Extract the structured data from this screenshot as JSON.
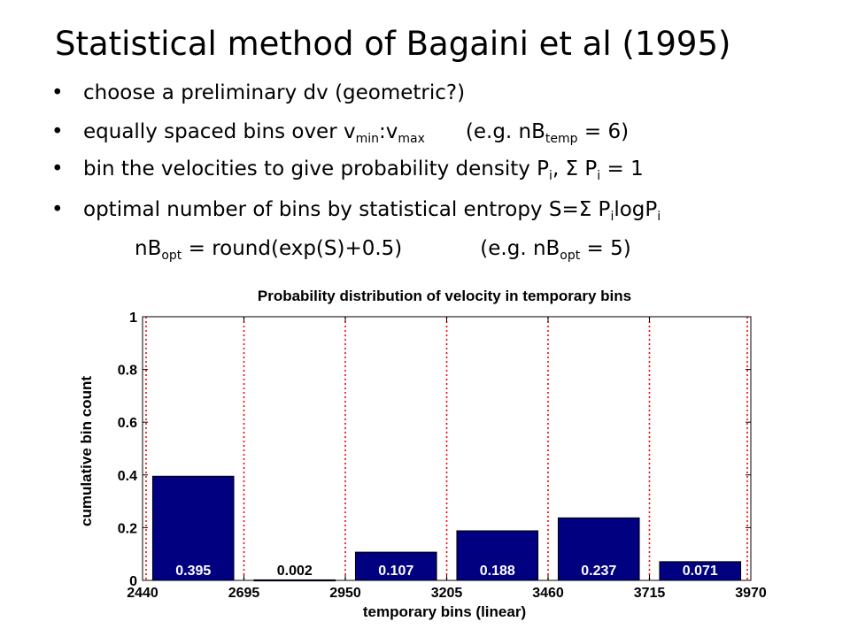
{
  "slide": {
    "title": "Statistical method of Bagaini et al (1995)",
    "bullet_marker": "•",
    "b1": "choose a preliminary dv (geometric?)",
    "b2": {
      "pre": "equally spaced bins over v",
      "sub1": "min",
      "mid": ":v",
      "sub2": "max",
      "example_pre": "(e.g. nB",
      "example_sub": "temp",
      "example_post": " = 6)"
    },
    "b3": {
      "pre": "bin the velocities to give probability density P",
      "sub1": "i",
      "mid": ", Σ P",
      "sub2": "i",
      "post": " = 1"
    },
    "b4": {
      "pre": "optimal number of bins by statistical entropy S=Σ P",
      "sub1": "i",
      "mid": "logP",
      "sub2": "i"
    },
    "formula": {
      "pre": "nB",
      "sub": "opt",
      "mid": " = round(exp(S)+0.5)",
      "example_pre": "(e.g. nB",
      "example_sub": "opt",
      "example_post": " = 5)"
    }
  },
  "chart_data": {
    "type": "bar",
    "title": "Probability distribution of velocity in temporary bins",
    "xlabel": "temporary bins (linear)",
    "ylabel": "cumulative bin count",
    "x_ticks": [
      "2440",
      "2695",
      "2950",
      "3205",
      "3460",
      "3715",
      "3970"
    ],
    "y_ticks": [
      "0",
      "0.2",
      "0.4",
      "0.6",
      "0.8",
      "1"
    ],
    "xlim": [
      2440,
      3970
    ],
    "ylim": [
      0,
      1
    ],
    "bin_edges": [
      2440,
      2695,
      2950,
      3205,
      3460,
      3715,
      3970
    ],
    "values": [
      0.395,
      0.002,
      0.107,
      0.188,
      0.237,
      0.071
    ],
    "labels": [
      "0.395",
      "0.002",
      "0.107",
      "0.188",
      "0.237",
      "0.071"
    ],
    "bar_color": "#000080",
    "edge_line_color": "#ff0000",
    "edge_line_style": "dotted",
    "grid": false
  }
}
